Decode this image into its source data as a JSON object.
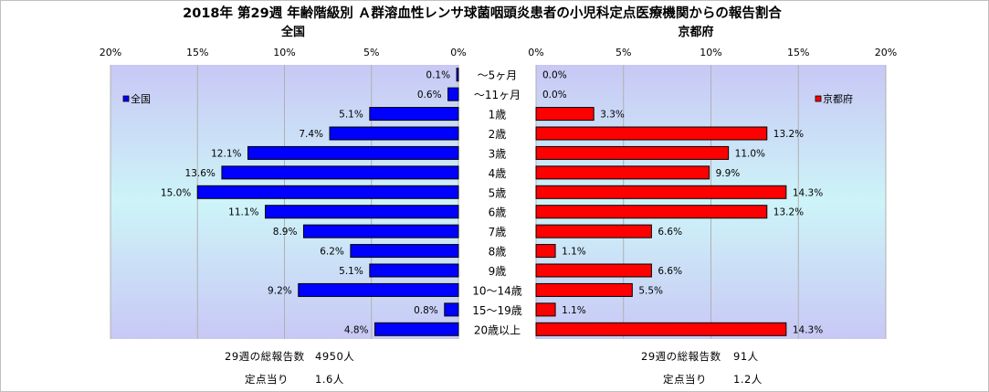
{
  "chart_data": {
    "type": "bar",
    "title": "2018年 第29週 年齢階級別 Ａ群溶血性レンサ球菌咽頭炎患者の小児科定点医療機関からの報告割合",
    "categories": [
      "～5ヶ月",
      "～11ヶ月",
      "1歳",
      "2歳",
      "3歳",
      "4歳",
      "5歳",
      "6歳",
      "7歳",
      "8歳",
      "9歳",
      "10～14歳",
      "15～19歳",
      "20歳以上"
    ],
    "series": [
      {
        "name": "全国",
        "color": "#0000ff",
        "values": [
          0.1,
          0.6,
          5.1,
          7.4,
          12.1,
          13.6,
          15.0,
          11.1,
          8.9,
          6.2,
          5.1,
          9.2,
          0.8,
          4.8
        ],
        "labels": [
          "0.1%",
          "0.6%",
          "5.1%",
          "7.4%",
          "12.1%",
          "13.6%",
          "15.0%",
          "11.1%",
          "8.9%",
          "6.2%",
          "5.1%",
          "9.2%",
          "0.8%",
          "4.8%"
        ]
      },
      {
        "name": "京都府",
        "color": "#ff0000",
        "values": [
          0.0,
          0.0,
          3.3,
          13.2,
          11.0,
          9.9,
          14.3,
          13.2,
          6.6,
          1.1,
          6.6,
          5.5,
          1.1,
          14.3
        ],
        "labels": [
          "0.0%",
          "0.0%",
          "3.3%",
          "13.2%",
          "11.0%",
          "9.9%",
          "14.3%",
          "13.2%",
          "6.6%",
          "1.1%",
          "6.6%",
          "5.5%",
          "1.1%",
          "14.3%"
        ]
      }
    ],
    "left_panel": {
      "title": "全国",
      "xlim": [
        20,
        0
      ],
      "ticks": [
        "20%",
        "15%",
        "10%",
        "5%",
        "0%"
      ],
      "legend": "全国",
      "legend_position": "top-left",
      "grid": "vertical"
    },
    "right_panel": {
      "title": "京都府",
      "xlim": [
        0,
        20
      ],
      "ticks": [
        "0%",
        "5%",
        "10%",
        "15%",
        "20%"
      ],
      "legend": "京都府",
      "legend_position": "top-right",
      "grid": "vertical"
    }
  },
  "summary": {
    "left": {
      "total_label": "29週の総報告数",
      "total_value": "4950人",
      "per_site_label": "定点当り",
      "per_site_value": "1.6人"
    },
    "right": {
      "total_label": "29週の総報告数",
      "total_value": "91人",
      "per_site_label": "定点当り",
      "per_site_value": "1.2人"
    }
  }
}
